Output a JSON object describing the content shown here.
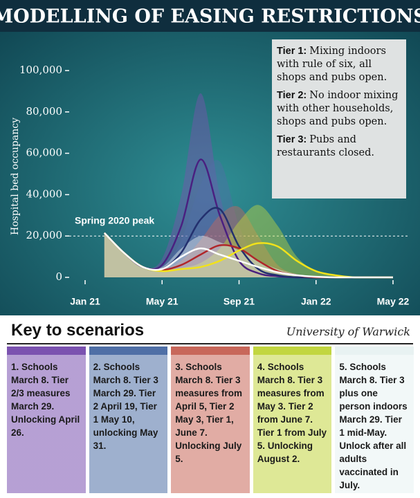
{
  "chart_data": {
    "type": "line",
    "title": "MODELLING OF EASING RESTRICTIONS",
    "ylabel": "Hospital bed occupancy",
    "annotation": "Spring 2020 peak",
    "peak_line": 20000,
    "categories": [
      "Jan 21",
      null,
      null,
      null,
      "May 21",
      null,
      null,
      null,
      "Sep 21",
      null,
      null,
      null,
      "Jan 22",
      null,
      null,
      null,
      "May 22"
    ],
    "ylim": [
      0,
      100000
    ],
    "yticks": [
      0,
      {
        "value": 20000,
        "label": "20,000"
      },
      {
        "value": 40000,
        "label": "40,000"
      },
      {
        "value": 60000,
        "label": "60,000"
      },
      {
        "value": 80000,
        "label": "80,000"
      },
      {
        "value": 100000,
        "label": "100,000"
      }
    ],
    "legend_title": "Key to scenarios",
    "source": "University of Warwick",
    "series": [
      {
        "name": "1. Schools March 8. Tier 2/3 measures March 29. Unlocking April 26.",
        "color": "#4a2080",
        "fill": "#7b52b0",
        "values": [
          null,
          21500,
          12000,
          5000,
          6000,
          25000,
          57000,
          30000,
          8000,
          2000,
          500,
          0,
          0,
          0,
          0,
          0,
          0
        ],
        "upper": [
          null,
          21500,
          12000,
          5000,
          9000,
          40000,
          89000,
          40000,
          10000,
          3000,
          800,
          0,
          0,
          0,
          0,
          0,
          0
        ]
      },
      {
        "name": "2. Schools March 8. Tier 3 March 29. Tier 2 April 19, Tier 1 May 10, unlocking May 31.",
        "color": "#23306e",
        "fill": "#4f6fa6",
        "values": [
          null,
          21500,
          12000,
          5000,
          4000,
          12000,
          28000,
          33000,
          15000,
          4000,
          1000,
          0,
          0,
          0,
          0,
          0,
          0
        ],
        "upper": [
          null,
          21500,
          12000,
          5000,
          5000,
          18000,
          45000,
          56000,
          25000,
          7000,
          1500,
          0,
          0,
          0,
          0,
          0,
          0
        ]
      },
      {
        "name": "3. Schools March 8. Tier 3 measures from April 5, Tier 2 May 3, Tier 1, June 7. Unlocking July 5.",
        "color": "#b0262a",
        "fill": "#c8675a",
        "values": [
          null,
          21500,
          12000,
          5000,
          3500,
          6000,
          11000,
          15500,
          14000,
          8000,
          3000,
          1000,
          0,
          0,
          0,
          0,
          0
        ],
        "upper": [
          null,
          21500,
          12000,
          5000,
          4000,
          8000,
          18000,
          30000,
          34000,
          20000,
          6000,
          1500,
          0,
          0,
          0,
          0,
          0
        ]
      },
      {
        "name": "4. Schools March 8. Tier 3 measures from May 3. Tier 2 from June 7. Tier 1 from July 5. Unlocking August 2.",
        "color": "#f2e21a",
        "fill": "#c2d640",
        "values": [
          null,
          21500,
          12000,
          5000,
          3000,
          4000,
          5000,
          8000,
          13000,
          16500,
          15000,
          8000,
          3000,
          1000,
          0,
          0,
          0
        ],
        "upper": [
          null,
          21500,
          12000,
          5000,
          3500,
          4500,
          7000,
          14000,
          27000,
          35000,
          25000,
          10000,
          3000,
          1000,
          0,
          0,
          0
        ]
      },
      {
        "name": "5. Schools March 8. Tier 3 plus one person indoors March 29. Tier 1 mid-May. Unlock after all adults vaccinated in July.",
        "color": "#ffffff",
        "fill": "#e8f2f2",
        "values": [
          null,
          21500,
          12000,
          5000,
          4000,
          10000,
          14000,
          11000,
          8000,
          5000,
          2500,
          1000,
          300,
          0,
          0,
          0,
          0
        ],
        "upper": [
          null,
          21500,
          12000,
          5000,
          5000,
          14000,
          20000,
          17000,
          13000,
          8000,
          4000,
          1500,
          500,
          0,
          0,
          0,
          0
        ]
      }
    ]
  },
  "annotations": [
    {
      "label": "Tier 1:",
      "text": "Mixing indoors with rule of six, all shops and pubs open."
    },
    {
      "label": "Tier 2:",
      "text": "No indoor mixing with other households, shops and pubs open."
    },
    {
      "label": "Tier 3:",
      "text": "Pubs and restaurants closed."
    }
  ]
}
